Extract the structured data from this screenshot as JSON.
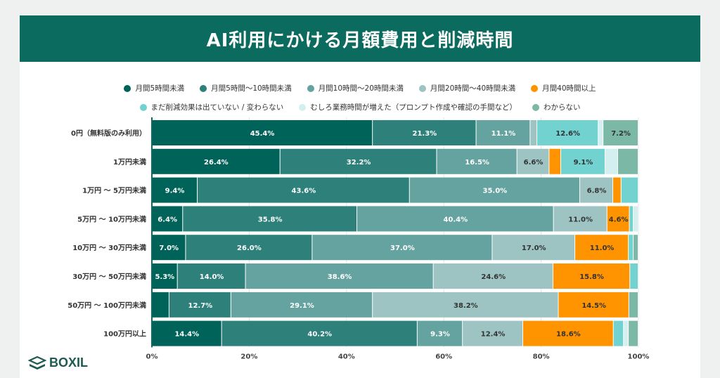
{
  "chart_data": {
    "type": "bar",
    "orientation": "horizontal",
    "stacked": true,
    "title": "AI利用にかける月額費用と削減時間",
    "categories": [
      "0円（無料版のみ利用）",
      "1万円未満",
      "1万円 ～ 5万円未満",
      "5万円 ～ 10万円未満",
      "10万円 ～ 30万円未満",
      "30万円 ～ 50万円未満",
      "50万円 ～ 100万円未満",
      "100万円以上"
    ],
    "series": [
      {
        "name": "月間5時間未満",
        "color": "#00635a",
        "values": [
          45.4,
          26.4,
          9.4,
          6.4,
          7.0,
          5.3,
          3.6,
          14.4
        ]
      },
      {
        "name": "月間5時間～10時間未満",
        "color": "#2e807b",
        "values": [
          21.3,
          32.2,
          43.6,
          35.8,
          26.0,
          14.0,
          12.7,
          40.2
        ]
      },
      {
        "name": "月間10時間～20時間未満",
        "color": "#64a3a0",
        "values": [
          11.1,
          16.5,
          35.0,
          40.4,
          37.0,
          38.6,
          29.1,
          9.3
        ]
      },
      {
        "name": "月間20時間～40時間未満",
        "color": "#9dc4c2",
        "values": [
          1.4,
          6.6,
          6.8,
          11.0,
          17.0,
          24.6,
          38.2,
          12.4
        ]
      },
      {
        "name": "月間40時間以上",
        "color": "#ff9400",
        "values": [
          0,
          2.4,
          1.7,
          4.6,
          11.0,
          15.8,
          14.5,
          18.6
        ]
      },
      {
        "name": "まだ削減効果は出ていない / 変わらない",
        "color": "#71d2d0",
        "values": [
          12.6,
          9.1,
          3.5,
          0.8,
          1.0,
          1.7,
          0,
          2.1
        ]
      },
      {
        "name": "むしろ業務時間が増えた（プロンプト作成や確認の手間など）",
        "color": "#d3efef",
        "values": [
          1.0,
          2.6,
          0,
          1.0,
          0,
          0,
          0,
          1.0
        ]
      },
      {
        "name": "わからない",
        "color": "#7bb8a5",
        "values": [
          7.2,
          4.2,
          0,
          0,
          1.0,
          0,
          1.9,
          2.0
        ]
      }
    ],
    "xlim": [
      0,
      100
    ],
    "xticks": [
      "0%",
      "20%",
      "40%",
      "60%",
      "80%",
      "100%"
    ],
    "grid": true,
    "legend_position": "top",
    "label_format": "%"
  },
  "brand": {
    "logo_text": "BOXIL"
  }
}
